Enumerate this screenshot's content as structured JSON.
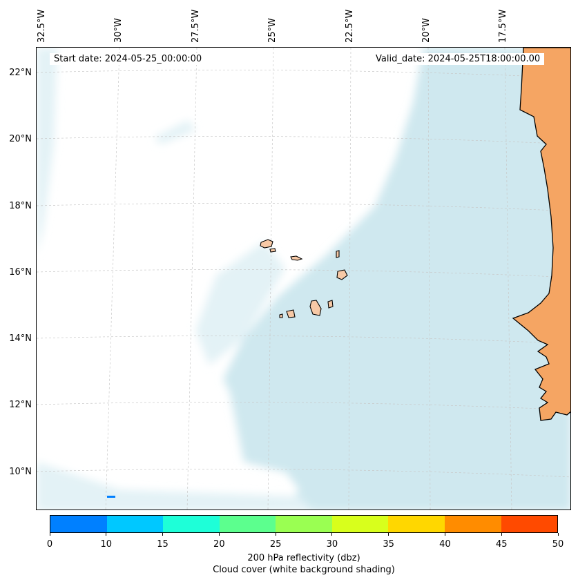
{
  "header": {
    "start_date": "Start date: 2024-05-25_00:00:00",
    "valid_date": "Valid_date: 2024-05-25T18:00:00.00"
  },
  "map": {
    "lon_labels": [
      "32.5°W",
      "30°W",
      "27.5°W",
      "25°W",
      "22.5°W",
      "20°W",
      "17.5°W"
    ],
    "lat_labels": [
      "22°N",
      "20°N",
      "18°N",
      "16°N",
      "14°N",
      "12°N",
      "10°N"
    ],
    "colors": {
      "cloud": "#cfe8ef",
      "cloud_light": "#e3f2f6",
      "land": "#f5a563",
      "land_light": "#f9c69a",
      "island": "#f7c9a6",
      "coast": "#000000",
      "grid": "#c8c8c8"
    }
  },
  "colorbar": {
    "ticks": [
      "0",
      "10",
      "15",
      "20",
      "25",
      "30",
      "35",
      "40",
      "45",
      "50"
    ],
    "colors": [
      "#0080ff",
      "#00c8ff",
      "#1effd8",
      "#5cff8e",
      "#9aff52",
      "#d8ff1c",
      "#ffd700",
      "#ff8c00",
      "#ff4a00"
    ],
    "label": "200 hPa reflectivity (dbz)",
    "sublabel": "Cloud cover (white background shading)"
  }
}
